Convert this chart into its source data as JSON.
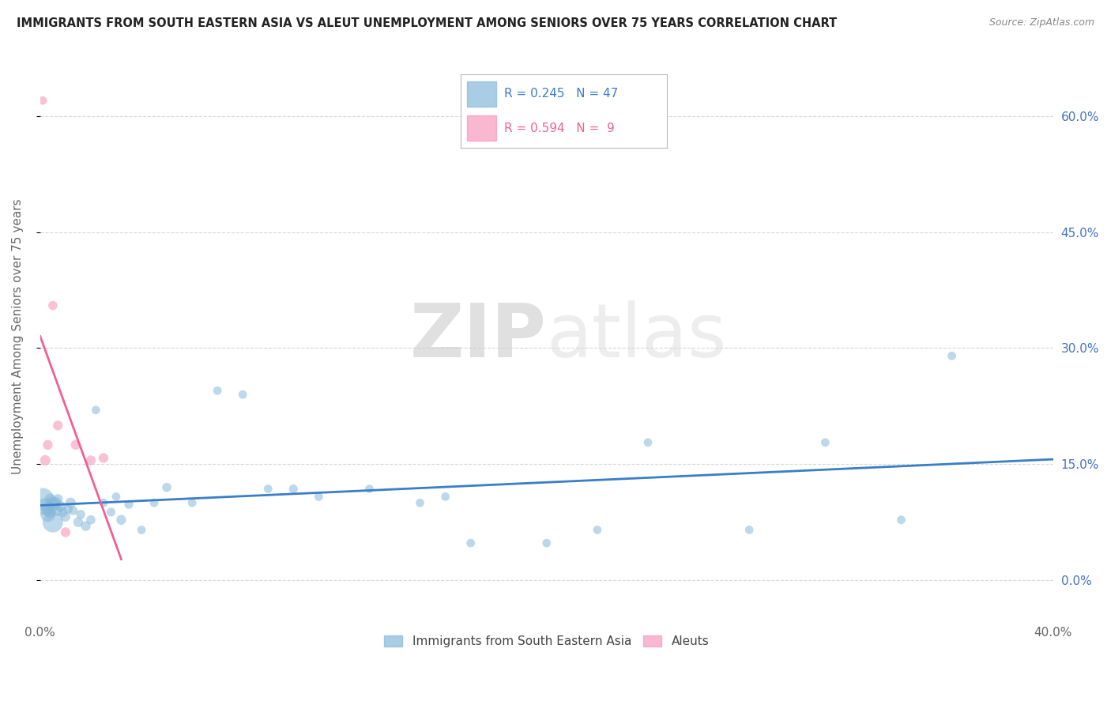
{
  "title": "IMMIGRANTS FROM SOUTH EASTERN ASIA VS ALEUT UNEMPLOYMENT AMONG SENIORS OVER 75 YEARS CORRELATION CHART",
  "source": "Source: ZipAtlas.com",
  "ylabel": "Unemployment Among Seniors over 75 years",
  "legend_label1": "Immigrants from South Eastern Asia",
  "legend_label2": "Aleuts",
  "r1": 0.245,
  "n1": 47,
  "r2": 0.594,
  "n2": 9,
  "color1": "#85b8d9",
  "color2": "#f799bc",
  "trendline_color1": "#3a7dc9",
  "trendline_color2": "#f06090",
  "xlim": [
    0.0,
    0.4
  ],
  "ylim": [
    -0.05,
    0.68
  ],
  "right_yticks": [
    0.0,
    0.15,
    0.3,
    0.45,
    0.6
  ],
  "right_yticklabels": [
    "0.0%",
    "15.0%",
    "30.0%",
    "45.0%",
    "60.0%"
  ],
  "xticks": [
    0.0,
    0.05,
    0.1,
    0.15,
    0.2,
    0.25,
    0.3,
    0.35,
    0.4
  ],
  "xticklabels": [
    "0.0%",
    "",
    "",
    "",
    "",
    "",
    "",
    "",
    "40.0%"
  ],
  "watermark_zip": "ZIP",
  "watermark_atlas": "atlas",
  "blue_x": [
    0.001,
    0.002,
    0.003,
    0.003,
    0.004,
    0.004,
    0.005,
    0.005,
    0.006,
    0.007,
    0.007,
    0.008,
    0.009,
    0.01,
    0.011,
    0.012,
    0.013,
    0.015,
    0.016,
    0.018,
    0.02,
    0.022,
    0.025,
    0.028,
    0.03,
    0.032,
    0.035,
    0.04,
    0.045,
    0.05,
    0.06,
    0.07,
    0.08,
    0.09,
    0.1,
    0.11,
    0.13,
    0.15,
    0.16,
    0.17,
    0.2,
    0.22,
    0.24,
    0.28,
    0.31,
    0.34,
    0.36
  ],
  "blue_y": [
    0.105,
    0.095,
    0.085,
    0.092,
    0.088,
    0.105,
    0.075,
    0.098,
    0.1,
    0.09,
    0.105,
    0.095,
    0.088,
    0.082,
    0.092,
    0.1,
    0.09,
    0.075,
    0.085,
    0.07,
    0.078,
    0.22,
    0.1,
    0.088,
    0.108,
    0.078,
    0.098,
    0.065,
    0.1,
    0.12,
    0.1,
    0.245,
    0.24,
    0.118,
    0.118,
    0.108,
    0.118,
    0.1,
    0.108,
    0.048,
    0.048,
    0.065,
    0.178,
    0.065,
    0.178,
    0.078,
    0.29
  ],
  "blue_size": [
    400,
    250,
    180,
    150,
    120,
    100,
    350,
    180,
    120,
    100,
    80,
    100,
    80,
    80,
    70,
    90,
    70,
    80,
    70,
    80,
    70,
    60,
    60,
    65,
    60,
    80,
    65,
    60,
    60,
    70,
    60,
    60,
    60,
    60,
    65,
    60,
    60,
    60,
    60,
    60,
    60,
    60,
    60,
    60,
    60,
    60,
    60
  ],
  "pink_x": [
    0.001,
    0.002,
    0.003,
    0.005,
    0.007,
    0.01,
    0.014,
    0.02,
    0.025
  ],
  "pink_y": [
    0.62,
    0.155,
    0.175,
    0.355,
    0.2,
    0.062,
    0.175,
    0.155,
    0.158
  ],
  "pink_size": [
    60,
    90,
    80,
    70,
    80,
    80,
    80,
    80,
    80
  ],
  "background_color": "#ffffff",
  "grid_color": "#d0d0d0"
}
